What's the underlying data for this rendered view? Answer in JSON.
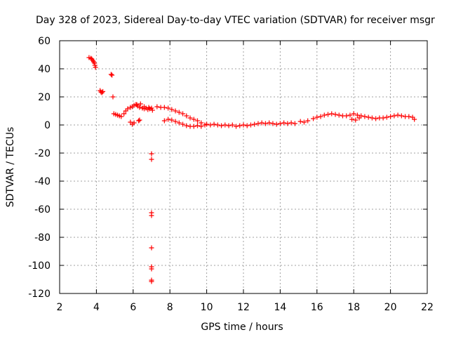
{
  "chart_data": {
    "type": "scatter",
    "title": "Day 328 of 2023, Sidereal Day-to-day VTEC variation (SDTVAR) for receiver msgr",
    "xlabel": "GPS time / hours",
    "ylabel": "SDTVAR / TECUs",
    "xlim": [
      2,
      22
    ],
    "ylim": [
      -120,
      60
    ],
    "xticks": [
      "2",
      "4",
      "6",
      "8",
      "10",
      "12",
      "14",
      "16",
      "18",
      "20",
      "22"
    ],
    "yticks": [
      "60",
      "40",
      "20",
      "0",
      "-20",
      "-40",
      "-60",
      "-80",
      "-100",
      "-120"
    ],
    "grid": true,
    "marker": "+",
    "color": "#ff0000",
    "series": [
      {
        "name": "SDTVAR",
        "points": [
          [
            3.6,
            48
          ],
          [
            3.7,
            47.5
          ],
          [
            3.75,
            47
          ],
          [
            3.8,
            46
          ],
          [
            3.85,
            45
          ],
          [
            3.9,
            44
          ],
          [
            3.92,
            42.5
          ],
          [
            3.95,
            41
          ],
          [
            4.2,
            24.5
          ],
          [
            4.25,
            23.5
          ],
          [
            4.3,
            23
          ],
          [
            4.35,
            23.8
          ],
          [
            4.8,
            36
          ],
          [
            4.85,
            35.5
          ],
          [
            4.9,
            20
          ],
          [
            4.95,
            8
          ],
          [
            5.05,
            7.5
          ],
          [
            5.15,
            7
          ],
          [
            5.25,
            6.5
          ],
          [
            5.35,
            6
          ],
          [
            5.5,
            8
          ],
          [
            5.6,
            10
          ],
          [
            5.7,
            11.5
          ],
          [
            5.85,
            12.5
          ],
          [
            5.95,
            13
          ],
          [
            6.05,
            14
          ],
          [
            6.15,
            14.5
          ],
          [
            6.25,
            13.5
          ],
          [
            6.35,
            12.5
          ],
          [
            6.5,
            12
          ],
          [
            6.6,
            11.5
          ],
          [
            6.7,
            12
          ],
          [
            6.8,
            11
          ],
          [
            6.9,
            11.5
          ],
          [
            7.0,
            12
          ],
          [
            7.05,
            10.5
          ],
          [
            5.85,
            2
          ],
          [
            5.95,
            0.5
          ],
          [
            6.05,
            1.5
          ],
          [
            6.3,
            3
          ],
          [
            6.35,
            3.5
          ],
          [
            6.2,
            14.5
          ],
          [
            6.4,
            15
          ],
          [
            6.6,
            13
          ],
          [
            6.85,
            12.5
          ],
          [
            7.0,
            -20.5
          ],
          [
            7.0,
            -24.5
          ],
          [
            7.0,
            -62.5
          ],
          [
            7.0,
            -64.5
          ],
          [
            7.0,
            -87.5
          ],
          [
            7.0,
            -101
          ],
          [
            7.0,
            -102.5
          ],
          [
            7.0,
            -110.5
          ],
          [
            7.0,
            -111.5
          ],
          [
            7.3,
            13
          ],
          [
            7.5,
            12.5
          ],
          [
            7.7,
            12.5
          ],
          [
            7.9,
            12
          ],
          [
            8.1,
            11
          ],
          [
            8.3,
            10
          ],
          [
            8.5,
            9
          ],
          [
            8.7,
            8
          ],
          [
            8.9,
            6.5
          ],
          [
            9.1,
            5
          ],
          [
            9.3,
            4
          ],
          [
            9.5,
            3
          ],
          [
            9.7,
            1.5
          ],
          [
            7.7,
            3
          ],
          [
            7.9,
            4
          ],
          [
            8.1,
            3.5
          ],
          [
            8.3,
            2.5
          ],
          [
            8.5,
            1.5
          ],
          [
            8.7,
            0.5
          ],
          [
            8.9,
            -0.5
          ],
          [
            9.1,
            -1
          ],
          [
            9.3,
            -1
          ],
          [
            9.5,
            -0.5
          ],
          [
            9.7,
            -1
          ],
          [
            9.9,
            0
          ],
          [
            10.0,
            0.5
          ],
          [
            10.2,
            0
          ],
          [
            10.4,
            0.5
          ],
          [
            10.6,
            0
          ],
          [
            10.8,
            -0.5
          ],
          [
            11.0,
            0
          ],
          [
            11.2,
            -0.5
          ],
          [
            11.4,
            0
          ],
          [
            11.6,
            -1
          ],
          [
            11.8,
            -0.5
          ],
          [
            12.0,
            0
          ],
          [
            12.2,
            -0.5
          ],
          [
            12.4,
            0
          ],
          [
            12.6,
            0.5
          ],
          [
            12.8,
            1
          ],
          [
            13.0,
            1.5
          ],
          [
            13.2,
            1
          ],
          [
            13.4,
            1.5
          ],
          [
            13.6,
            1
          ],
          [
            13.8,
            0.5
          ],
          [
            14.0,
            1
          ],
          [
            14.2,
            1.5
          ],
          [
            14.4,
            1
          ],
          [
            14.6,
            1.5
          ],
          [
            14.8,
            1
          ],
          [
            15.1,
            2.5
          ],
          [
            15.3,
            2
          ],
          [
            15.5,
            3
          ],
          [
            15.8,
            4.5
          ],
          [
            16.0,
            5.5
          ],
          [
            16.2,
            6
          ],
          [
            16.4,
            7
          ],
          [
            16.6,
            7.5
          ],
          [
            16.8,
            8
          ],
          [
            17.0,
            7.5
          ],
          [
            17.2,
            7
          ],
          [
            17.4,
            6.5
          ],
          [
            17.6,
            6.5
          ],
          [
            17.8,
            7
          ],
          [
            18.0,
            8
          ],
          [
            18.2,
            7
          ],
          [
            18.4,
            6.5
          ],
          [
            18.6,
            6
          ],
          [
            17.9,
            4
          ],
          [
            18.1,
            3.5
          ],
          [
            18.3,
            5
          ],
          [
            18.8,
            5.5
          ],
          [
            19.0,
            5
          ],
          [
            19.2,
            4.5
          ],
          [
            19.4,
            5
          ],
          [
            19.6,
            5
          ],
          [
            19.8,
            5.5
          ],
          [
            20.0,
            6
          ],
          [
            20.2,
            6.5
          ],
          [
            20.4,
            7
          ],
          [
            20.6,
            6.5
          ],
          [
            20.8,
            6
          ],
          [
            21.0,
            6
          ],
          [
            21.2,
            5.5
          ],
          [
            21.3,
            4
          ]
        ]
      }
    ]
  }
}
